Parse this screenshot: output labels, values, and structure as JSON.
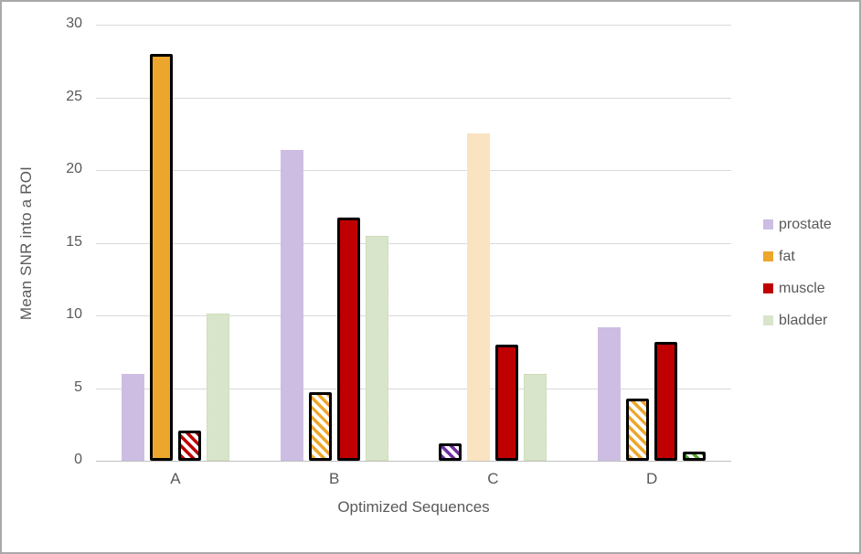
{
  "chart_data": {
    "type": "bar",
    "title": "",
    "xlabel": "Optimized Sequences",
    "ylabel": "Mean SNR into a ROI",
    "categories": [
      "A",
      "B",
      "C",
      "D"
    ],
    "y_ticks": [
      0,
      5,
      10,
      15,
      20,
      25,
      30
    ],
    "ylim": [
      0,
      30
    ],
    "grid": "horizontal",
    "legend_position": "right",
    "series": [
      {
        "name": "prostate",
        "color": "#cdbde3",
        "hatch_color": "#7030a0",
        "values": [
          6.0,
          21.4,
          1.2,
          9.2
        ],
        "styles": [
          "solid",
          "solid",
          "hatch-outline",
          "solid"
        ]
      },
      {
        "name": "fat",
        "color": "#eda62c",
        "faded_color": "#fae3c0",
        "hatch_color": "#eda62c",
        "values": [
          28.0,
          4.7,
          22.5,
          4.3
        ],
        "styles": [
          "solid-outline",
          "hatch-outline",
          "faded",
          "hatch-outline"
        ]
      },
      {
        "name": "muscle",
        "color": "#c00000",
        "hatch_color": "#c00000",
        "values": [
          2.1,
          16.7,
          8.0,
          8.2
        ],
        "styles": [
          "hatch-outline",
          "solid-outline",
          "solid-outline",
          "solid-outline"
        ]
      },
      {
        "name": "bladder",
        "color": "#d9e5ca",
        "hatch_color": "#55a630",
        "edge_color": "#c3d6ab",
        "values": [
          10.1,
          15.5,
          6.0,
          0.6
        ],
        "styles": [
          "solid",
          "solid",
          "solid",
          "hatch-outline"
        ]
      }
    ],
    "colors": {
      "tick_text": "#595959",
      "gridline": "#d9d9d9",
      "axis_line": "#bfbfbf",
      "outline": "#000000",
      "frame_border": "#a9a9a9"
    }
  }
}
